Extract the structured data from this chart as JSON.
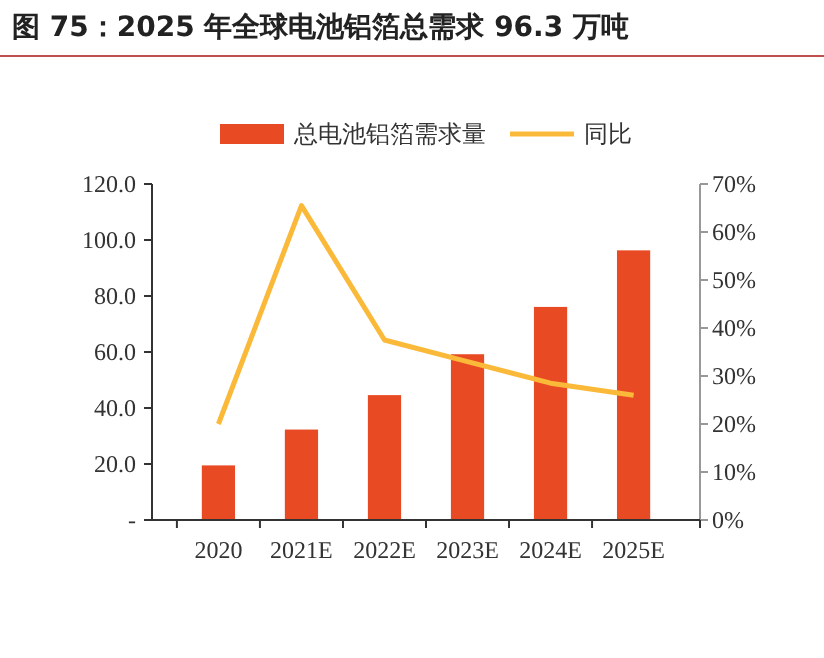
{
  "chart_data": {
    "type": "bar",
    "title": "图 75：2025 年全球电池铝箔总需求 96.3 万吨",
    "categories": [
      "2020",
      "2021E",
      "2022E",
      "2023E",
      "2024E",
      "2025E"
    ],
    "series": [
      {
        "name": "总电池铝箔需求量",
        "color": "#e84a23",
        "values": [
          19.5,
          32.3,
          44.6,
          59.2,
          76.1,
          96.3
        ]
      },
      {
        "name": "同比",
        "type": "line",
        "axis": "y2",
        "color": "#fbb93a",
        "values": [
          20,
          65.5,
          37.5,
          33,
          28.5,
          26
        ]
      }
    ],
    "ylim": [
      0,
      120
    ],
    "yticks": [
      {
        "value": 0,
        "label": "-"
      },
      {
        "value": 20,
        "label": "20.0"
      },
      {
        "value": 40,
        "label": "40.0"
      },
      {
        "value": 60,
        "label": "60.0"
      },
      {
        "value": 80,
        "label": "80.0"
      },
      {
        "value": 100,
        "label": "100.0"
      },
      {
        "value": 120,
        "label": "120.0"
      }
    ],
    "y2lim": [
      0,
      70
    ],
    "y2ticks": [
      {
        "value": 0,
        "label": "0%"
      },
      {
        "value": 10,
        "label": "10%"
      },
      {
        "value": 20,
        "label": "20%"
      },
      {
        "value": 30,
        "label": "30%"
      },
      {
        "value": 40,
        "label": "40%"
      },
      {
        "value": 50,
        "label": "50%"
      },
      {
        "value": 60,
        "label": "60%"
      },
      {
        "value": 70,
        "label": "70%"
      }
    ],
    "legend": "top",
    "grid": false,
    "marker": "none",
    "line_style": "solid"
  }
}
